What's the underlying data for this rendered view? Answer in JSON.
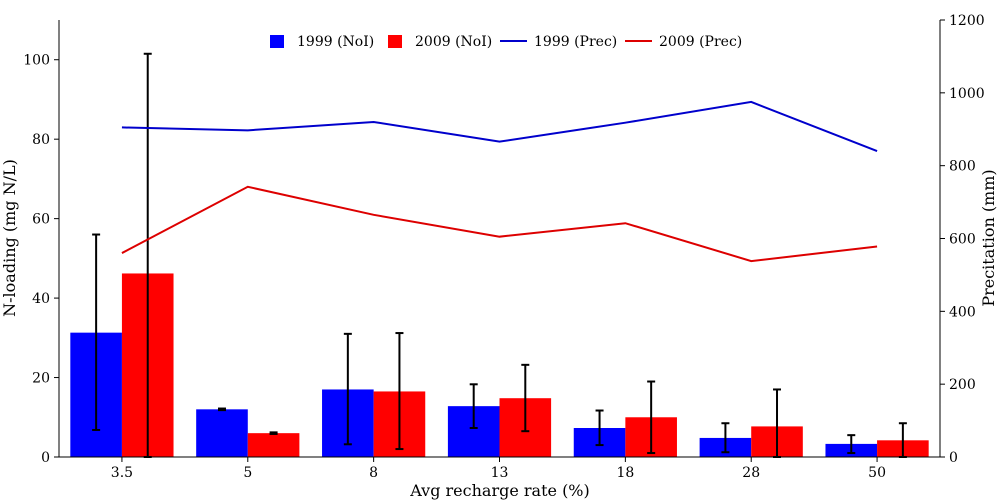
{
  "chart_data": {
    "type": "bar",
    "categories": [
      "3.5",
      "5",
      "8",
      "13",
      "18",
      "28",
      "50"
    ],
    "xlabel": "Avg recharge rate (%)",
    "ylabel": "N-loading (mg N/L)",
    "y2label": "Precitation (mm)",
    "ylim": [
      0,
      110
    ],
    "y2lim": [
      0,
      1200
    ],
    "yticks": [
      0,
      20,
      40,
      60,
      80,
      100
    ],
    "y2ticks": [
      0,
      200,
      400,
      600,
      800,
      1000,
      1200
    ],
    "grid": false,
    "legend_position": "top-center",
    "bar_series": [
      {
        "name": "1999 (NoI)",
        "color": "#0000ff",
        "values": [
          31.3,
          12.0,
          17.0,
          12.8,
          7.3,
          4.8,
          3.3
        ],
        "err_low": [
          6.8,
          11.8,
          3.2,
          7.3,
          3.0,
          1.2,
          1.0
        ],
        "err_high": [
          56.0,
          12.2,
          31.0,
          18.3,
          11.7,
          8.5,
          5.5
        ]
      },
      {
        "name": "2009 (NoI)",
        "color": "#ff0000",
        "values": [
          46.2,
          6.0,
          16.5,
          14.8,
          10.0,
          7.7,
          4.2
        ],
        "err_low": [
          0,
          5.8,
          2.0,
          6.5,
          1.0,
          0,
          0
        ],
        "err_high": [
          101.5,
          6.2,
          31.2,
          23.2,
          19.0,
          17.0,
          8.5
        ]
      }
    ],
    "line_series": [
      {
        "name": "1999 (Prec)",
        "color": "#0000cc",
        "axis": "right",
        "values": [
          905,
          897,
          920,
          866,
          918,
          975,
          840
        ]
      },
      {
        "name": "2009 (Prec)",
        "color": "#dd0000",
        "axis": "right",
        "values": [
          560,
          742,
          665,
          605,
          642,
          538,
          578
        ]
      }
    ]
  }
}
